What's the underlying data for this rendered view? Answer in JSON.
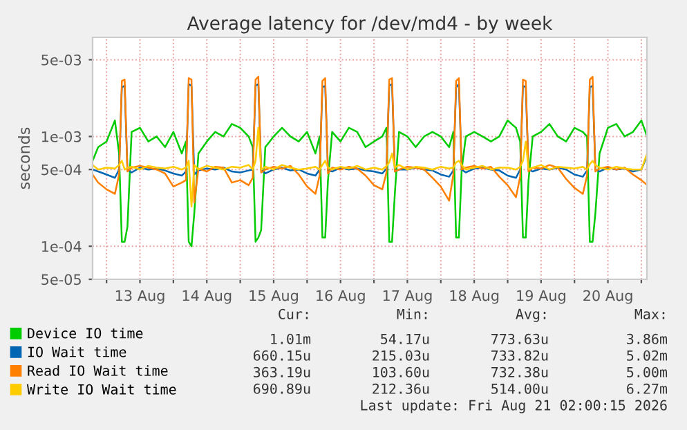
{
  "chart_data": {
    "type": "line",
    "title": "Average latency for /dev/md4 - by week",
    "ylabel": "seconds",
    "x": [
      "2026-08-12T19:00",
      "2026-08-12T21:00",
      "2026-08-13T00:00",
      "2026-08-13T03:00",
      "2026-08-13T04:30",
      "2026-08-13T05:30",
      "2026-08-13T06:30",
      "2026-08-13T07:30",
      "2026-08-13T09:00",
      "2026-08-13T12:00",
      "2026-08-13T15:00",
      "2026-08-13T18:00",
      "2026-08-13T21:00",
      "2026-08-14T00:00",
      "2026-08-14T03:00",
      "2026-08-14T04:30",
      "2026-08-14T05:30",
      "2026-08-14T06:30",
      "2026-08-14T07:30",
      "2026-08-14T09:00",
      "2026-08-14T12:00",
      "2026-08-14T15:00",
      "2026-08-14T18:00",
      "2026-08-14T21:00",
      "2026-08-15T00:00",
      "2026-08-15T03:00",
      "2026-08-15T04:30",
      "2026-08-15T05:30",
      "2026-08-15T06:30",
      "2026-08-15T07:30",
      "2026-08-15T09:00",
      "2026-08-15T12:00",
      "2026-08-15T15:00",
      "2026-08-15T18:00",
      "2026-08-15T21:00",
      "2026-08-16T00:00",
      "2026-08-16T03:00",
      "2026-08-16T04:30",
      "2026-08-16T05:30",
      "2026-08-16T06:30",
      "2026-08-16T07:30",
      "2026-08-16T09:00",
      "2026-08-16T12:00",
      "2026-08-16T15:00",
      "2026-08-16T18:00",
      "2026-08-16T21:00",
      "2026-08-17T00:00",
      "2026-08-17T03:00",
      "2026-08-17T04:30",
      "2026-08-17T05:30",
      "2026-08-17T06:30",
      "2026-08-17T07:30",
      "2026-08-17T09:00",
      "2026-08-17T12:00",
      "2026-08-17T15:00",
      "2026-08-17T18:00",
      "2026-08-17T21:00",
      "2026-08-18T00:00",
      "2026-08-18T03:00",
      "2026-08-18T04:30",
      "2026-08-18T05:30",
      "2026-08-18T06:30",
      "2026-08-18T07:30",
      "2026-08-18T09:00",
      "2026-08-18T12:00",
      "2026-08-18T15:00",
      "2026-08-18T18:00",
      "2026-08-18T21:00",
      "2026-08-19T00:00",
      "2026-08-19T03:00",
      "2026-08-19T04:30",
      "2026-08-19T05:30",
      "2026-08-19T06:30",
      "2026-08-19T07:30",
      "2026-08-19T09:00",
      "2026-08-19T12:00",
      "2026-08-19T15:00",
      "2026-08-19T18:00",
      "2026-08-19T21:00",
      "2026-08-20T00:00",
      "2026-08-20T03:00",
      "2026-08-20T04:30",
      "2026-08-20T05:30",
      "2026-08-20T06:30",
      "2026-08-20T07:30",
      "2026-08-20T09:00",
      "2026-08-20T12:00",
      "2026-08-20T15:00",
      "2026-08-20T18:00",
      "2026-08-20T21:00",
      "2026-08-21T00:00",
      "2026-08-21T02:00"
    ],
    "series": [
      {
        "name": "Device IO time",
        "color": "#00cc00",
        "values": [
          0.0006,
          0.0008,
          0.0009,
          0.0014,
          0.0007,
          0.00011,
          0.00011,
          0.00015,
          0.0011,
          0.0012,
          0.0009,
          0.001,
          0.0008,
          0.0011,
          0.0007,
          0.0009,
          0.00011,
          0.0001,
          0.0002,
          0.0007,
          0.0009,
          0.0011,
          0.001,
          0.0013,
          0.0012,
          0.001,
          0.0008,
          0.00011,
          0.00012,
          0.00014,
          0.0008,
          0.001,
          0.0012,
          0.001,
          0.0009,
          0.0011,
          0.0007,
          0.001,
          0.00012,
          0.00012,
          0.0004,
          0.0011,
          0.0009,
          0.0012,
          0.0011,
          0.0008,
          0.0009,
          0.001,
          0.0012,
          0.00011,
          0.00011,
          0.0003,
          0.0011,
          0.001,
          0.0008,
          0.001,
          0.0011,
          0.001,
          0.0008,
          0.0011,
          0.00012,
          0.00012,
          0.0005,
          0.001,
          0.0011,
          0.001,
          0.0009,
          0.001,
          0.0014,
          0.0012,
          0.0009,
          0.00012,
          0.00012,
          0.0004,
          0.001,
          0.0011,
          0.0013,
          0.001,
          0.0009,
          0.0012,
          0.0011,
          0.001,
          0.00011,
          0.00011,
          0.0002,
          0.0007,
          0.0012,
          0.0013,
          0.001,
          0.0011,
          0.0014,
          0.00101
        ]
      },
      {
        "name": "IO Wait time",
        "color": "#0066b3",
        "values": [
          0.0005,
          0.00048,
          0.00045,
          0.00042,
          0.0005,
          0.0028,
          0.0029,
          0.0005,
          0.00047,
          0.00052,
          0.0005,
          0.00051,
          0.00049,
          0.00046,
          0.00044,
          0.00048,
          0.003,
          0.0029,
          0.00045,
          0.00049,
          0.00051,
          0.0005,
          0.00052,
          0.00048,
          0.00047,
          0.00049,
          0.0005,
          0.0029,
          0.003,
          0.0005,
          0.00046,
          0.0005,
          0.00052,
          0.00049,
          0.0005,
          0.00046,
          0.00044,
          0.0005,
          0.0028,
          0.0029,
          0.00049,
          0.00048,
          0.00052,
          0.0005,
          0.00051,
          0.00049,
          0.00048,
          0.00046,
          0.00051,
          0.0029,
          0.003,
          0.00048,
          0.0005,
          0.0005,
          0.00052,
          0.0005,
          0.00049,
          0.00045,
          0.00043,
          0.00049,
          0.0028,
          0.003,
          0.0005,
          0.00047,
          0.00051,
          0.00052,
          0.0005,
          0.00049,
          0.00044,
          0.00042,
          0.0005,
          0.0029,
          0.0028,
          0.0005,
          0.00048,
          0.00051,
          0.0005,
          0.00052,
          0.0005,
          0.00045,
          0.00043,
          0.00049,
          0.0028,
          0.0029,
          0.0005,
          0.00048,
          0.00052,
          0.0005,
          0.00051,
          0.00048,
          0.0005,
          0.00066
        ]
      },
      {
        "name": "Read IO Wait time",
        "color": "#ff8000",
        "values": [
          0.00045,
          0.00038,
          0.00033,
          0.0003,
          0.00045,
          0.0032,
          0.0033,
          0.00048,
          0.00052,
          0.00054,
          0.00052,
          0.0005,
          0.00046,
          0.00035,
          0.00038,
          0.0004,
          0.0034,
          0.0033,
          0.00025,
          0.00051,
          0.00048,
          0.00053,
          0.00052,
          0.00038,
          0.0004,
          0.00036,
          0.00042,
          0.0033,
          0.0035,
          0.00047,
          0.0005,
          0.00053,
          0.00051,
          0.00054,
          0.00045,
          0.00035,
          0.0003,
          0.00044,
          0.0032,
          0.0034,
          0.00046,
          0.00052,
          0.0005,
          0.00053,
          0.00051,
          0.00044,
          0.00036,
          0.00033,
          0.00047,
          0.0033,
          0.0034,
          0.00048,
          0.0005,
          0.00053,
          0.00052,
          0.0005,
          0.00042,
          0.00035,
          0.00026,
          0.00045,
          0.0032,
          0.0034,
          0.0005,
          0.00052,
          0.00054,
          0.00051,
          0.00053,
          0.00043,
          0.00036,
          0.00028,
          0.00043,
          0.0033,
          0.0032,
          0.00048,
          0.00052,
          0.00051,
          0.00055,
          0.00052,
          0.00041,
          0.00034,
          0.0003,
          0.00044,
          0.0033,
          0.0035,
          0.00048,
          0.00051,
          0.00053,
          0.0005,
          0.00052,
          0.00045,
          0.0004,
          0.000363
        ]
      },
      {
        "name": "Write IO Wait time",
        "color": "#ffcc00",
        "values": [
          0.00055,
          0.0005,
          0.00052,
          0.00051,
          0.00055,
          0.0006,
          0.0005,
          0.00052,
          0.00053,
          0.0005,
          0.00054,
          0.00052,
          0.00051,
          0.00053,
          0.0005,
          0.00052,
          0.0006,
          0.00023,
          0.00055,
          0.0005,
          0.00054,
          0.00052,
          0.0005,
          0.00053,
          0.00052,
          0.00055,
          0.0005,
          0.0006,
          0.0012,
          0.0005,
          0.00053,
          0.0005,
          0.00055,
          0.00052,
          0.0005,
          0.00051,
          0.00053,
          0.0005,
          0.00055,
          0.0006,
          0.00052,
          0.0005,
          0.00053,
          0.00051,
          0.00054,
          0.0005,
          0.00052,
          0.0005,
          0.00054,
          0.00058,
          0.0007,
          0.00052,
          0.00055,
          0.0005,
          0.00053,
          0.00052,
          0.0005,
          0.00053,
          0.00051,
          0.00052,
          0.00058,
          0.0006,
          0.00055,
          0.0005,
          0.00052,
          0.00054,
          0.0005,
          0.00052,
          0.00052,
          0.0005,
          0.00053,
          0.0006,
          0.0009,
          0.0005,
          0.00052,
          0.00055,
          0.0005,
          0.00053,
          0.00052,
          0.00051,
          0.00053,
          0.0005,
          0.00056,
          0.0006,
          0.00055,
          0.00052,
          0.0005,
          0.00053,
          0.00051,
          0.0005,
          0.0005,
          0.000691
        ]
      }
    ],
    "log": "y",
    "ylim": [
      5e-05,
      0.008
    ],
    "yticks": [
      {
        "value": 5e-05,
        "label": "5e-05"
      },
      {
        "value": 0.0001,
        "label": "1e-04"
      },
      {
        "value": 0.0005,
        "label": "5e-04"
      },
      {
        "value": 0.001,
        "label": "1e-03"
      },
      {
        "value": 0.005,
        "label": "5e-03"
      }
    ],
    "xlim": [
      "2026-08-12T19:00",
      "2026-08-21T02:00"
    ],
    "xticks": [
      {
        "value": "2026-08-13T00:00",
        "label": null
      },
      {
        "value": "2026-08-13T12:00",
        "label": "13 Aug"
      },
      {
        "value": "2026-08-14T00:00",
        "label": null
      },
      {
        "value": "2026-08-14T12:00",
        "label": "14 Aug"
      },
      {
        "value": "2026-08-15T00:00",
        "label": null
      },
      {
        "value": "2026-08-15T12:00",
        "label": "15 Aug"
      },
      {
        "value": "2026-08-16T00:00",
        "label": null
      },
      {
        "value": "2026-08-16T12:00",
        "label": "16 Aug"
      },
      {
        "value": "2026-08-17T00:00",
        "label": null
      },
      {
        "value": "2026-08-17T12:00",
        "label": "17 Aug"
      },
      {
        "value": "2026-08-18T00:00",
        "label": null
      },
      {
        "value": "2026-08-18T12:00",
        "label": "18 Aug"
      },
      {
        "value": "2026-08-19T00:00",
        "label": null
      },
      {
        "value": "2026-08-19T12:00",
        "label": "19 Aug"
      },
      {
        "value": "2026-08-20T00:00",
        "label": null
      },
      {
        "value": "2026-08-20T12:00",
        "label": "20 Aug"
      },
      {
        "value": "2026-08-21T00:00",
        "label": null
      }
    ],
    "grid": true,
    "legend": "bottom",
    "annotations": [
      "Cur:",
      "Min:",
      "Avg:",
      "Max:",
      "1.01m",
      "54.17u",
      "773.63u",
      "3.86m",
      "660.15u",
      "215.03u",
      "733.82u",
      "5.02m",
      "363.19u",
      "103.60u",
      "732.38u",
      "5.00m",
      "690.89u",
      "212.36u",
      "514.00u",
      "6.27m",
      "Last update: Fri Aug 21 02:00:15 2026"
    ]
  }
}
